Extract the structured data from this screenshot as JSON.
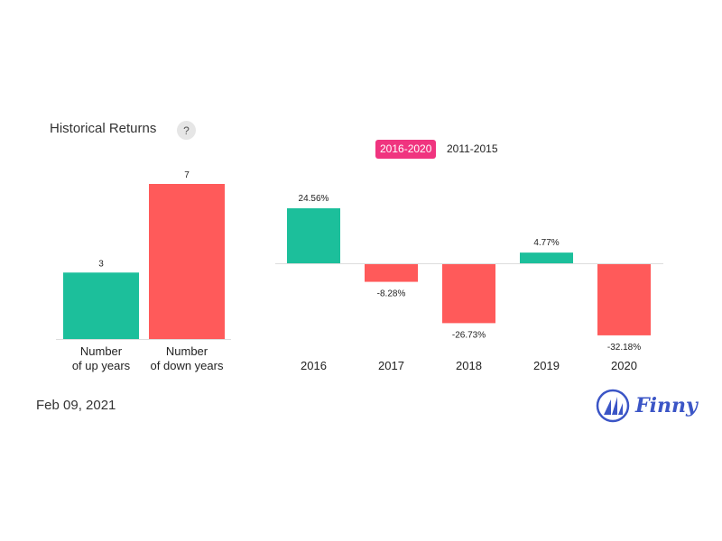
{
  "header": {
    "title": "Historical Returns",
    "help_label": "?"
  },
  "tabs": [
    {
      "label": "2016-2020",
      "active": true
    },
    {
      "label": "2011-2015",
      "active": false
    }
  ],
  "footer": {
    "date": "Feb 09, 2021",
    "brand": "Finny"
  },
  "colors": {
    "up": "#1cbf9b",
    "down": "#ff5a5a",
    "accent": "#f0347f",
    "brand": "#3b55c6"
  },
  "chart_data": [
    {
      "type": "bar",
      "categories": [
        [
          "Number",
          "of up years"
        ],
        [
          "Number",
          "of down years"
        ]
      ],
      "values": [
        3,
        7
      ],
      "data_labels": [
        "3",
        "7"
      ],
      "ylim": [
        0,
        7
      ]
    },
    {
      "type": "bar",
      "categories": [
        "2016",
        "2017",
        "2018",
        "2019",
        "2020"
      ],
      "values": [
        24.56,
        -8.28,
        -26.73,
        4.77,
        -32.18
      ],
      "data_labels": [
        "24.56%",
        "-8.28%",
        "-26.73%",
        "4.77%",
        "-32.18%"
      ],
      "ylim": [
        -32.18,
        24.56
      ]
    }
  ]
}
